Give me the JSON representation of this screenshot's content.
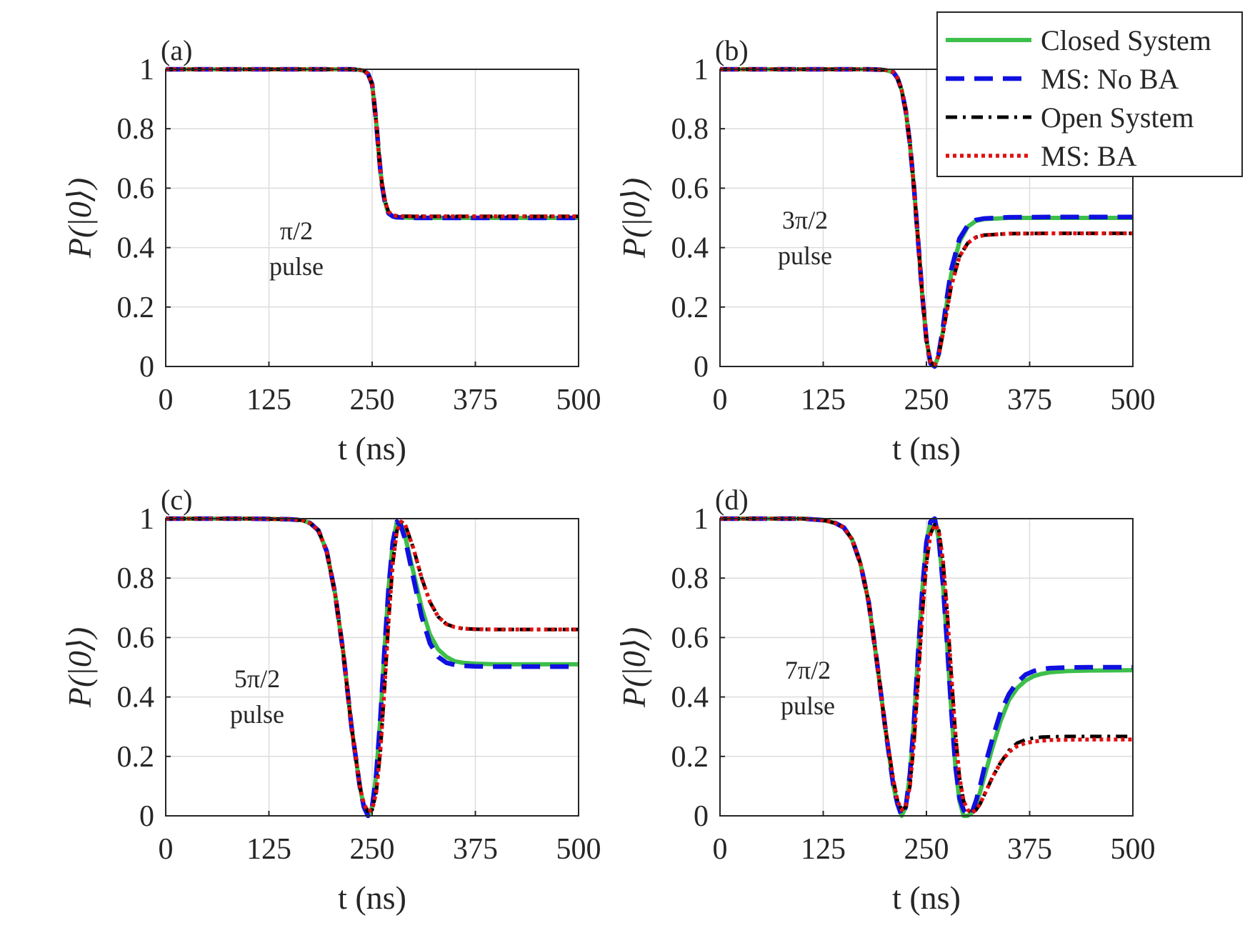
{
  "chart_data": [
    {
      "type": "line",
      "panel_label": "(a)",
      "annotation": [
        "π/2",
        "pulse"
      ],
      "xlabel": "t (ns)",
      "ylabel": "P(|0⟩)",
      "xlim": [
        0,
        500
      ],
      "ylim": [
        0,
        1
      ],
      "xticks": [
        "0",
        "125",
        "250",
        "375",
        "500"
      ],
      "yticks": [
        "0",
        "0.2",
        "0.4",
        "0.6",
        "0.8",
        "1"
      ],
      "x": [
        0,
        100,
        200,
        225,
        235,
        240,
        245,
        250,
        252,
        255,
        258,
        260,
        262,
        265,
        268,
        270,
        275,
        280,
        300,
        350,
        400,
        450,
        500
      ],
      "series": [
        {
          "name": "Closed System",
          "values": [
            1,
            1,
            1,
            1,
            0.998,
            0.995,
            0.985,
            0.95,
            0.9,
            0.82,
            0.72,
            0.66,
            0.61,
            0.56,
            0.53,
            0.515,
            0.505,
            0.502,
            0.5,
            0.5,
            0.5,
            0.5,
            0.5
          ]
        },
        {
          "name": "MS: No BA",
          "values": [
            1,
            1,
            1,
            1,
            0.998,
            0.995,
            0.985,
            0.95,
            0.9,
            0.82,
            0.72,
            0.66,
            0.61,
            0.56,
            0.53,
            0.515,
            0.505,
            0.502,
            0.5,
            0.5,
            0.5,
            0.5,
            0.5
          ]
        },
        {
          "name": "Open System",
          "values": [
            1,
            1,
            1,
            1,
            0.998,
            0.995,
            0.985,
            0.95,
            0.9,
            0.82,
            0.72,
            0.66,
            0.615,
            0.565,
            0.535,
            0.52,
            0.51,
            0.506,
            0.505,
            0.505,
            0.505,
            0.505,
            0.505
          ]
        },
        {
          "name": "MS: BA",
          "values": [
            1,
            1,
            1,
            1,
            0.998,
            0.995,
            0.985,
            0.95,
            0.9,
            0.82,
            0.72,
            0.66,
            0.615,
            0.565,
            0.535,
            0.52,
            0.51,
            0.506,
            0.505,
            0.505,
            0.505,
            0.505,
            0.505
          ]
        }
      ]
    },
    {
      "type": "line",
      "panel_label": "(b)",
      "annotation": [
        "3π/2",
        "pulse"
      ],
      "xlabel": "t (ns)",
      "ylabel": "P(|0⟩)",
      "xlim": [
        0,
        500
      ],
      "ylim": [
        0,
        1
      ],
      "xticks": [
        "0",
        "125",
        "250",
        "375",
        "500"
      ],
      "yticks": [
        "0",
        "0.2",
        "0.4",
        "0.6",
        "0.8",
        "1"
      ],
      "x": [
        0,
        100,
        180,
        200,
        210,
        215,
        220,
        225,
        230,
        235,
        240,
        245,
        250,
        255,
        260,
        265,
        270,
        275,
        280,
        290,
        300,
        310,
        320,
        350,
        400,
        500
      ],
      "series": [
        {
          "name": "Closed System",
          "values": [
            1,
            1,
            1,
            0.998,
            0.99,
            0.97,
            0.93,
            0.86,
            0.75,
            0.6,
            0.42,
            0.24,
            0.09,
            0.01,
            0.0,
            0.04,
            0.12,
            0.22,
            0.31,
            0.42,
            0.47,
            0.49,
            0.496,
            0.5,
            0.5,
            0.5
          ]
        },
        {
          "name": "MS: No BA",
          "values": [
            1,
            1,
            1,
            0.998,
            0.99,
            0.97,
            0.93,
            0.86,
            0.75,
            0.6,
            0.42,
            0.24,
            0.09,
            0.01,
            0.0,
            0.045,
            0.13,
            0.235,
            0.325,
            0.43,
            0.475,
            0.493,
            0.498,
            0.502,
            0.503,
            0.503
          ]
        },
        {
          "name": "Open System",
          "values": [
            1,
            1,
            1,
            0.998,
            0.99,
            0.97,
            0.93,
            0.86,
            0.75,
            0.6,
            0.42,
            0.24,
            0.09,
            0.015,
            0.005,
            0.04,
            0.11,
            0.19,
            0.27,
            0.37,
            0.415,
            0.435,
            0.442,
            0.447,
            0.448,
            0.448
          ]
        },
        {
          "name": "MS: BA",
          "values": [
            1,
            1,
            1,
            0.998,
            0.99,
            0.97,
            0.93,
            0.86,
            0.75,
            0.6,
            0.42,
            0.24,
            0.09,
            0.015,
            0.005,
            0.04,
            0.11,
            0.19,
            0.27,
            0.37,
            0.415,
            0.435,
            0.442,
            0.447,
            0.448,
            0.448
          ]
        }
      ]
    },
    {
      "type": "line",
      "panel_label": "(c)",
      "annotation": [
        "5π/2",
        "pulse"
      ],
      "xlabel": "t (ns)",
      "ylabel": "P(|0⟩)",
      "xlim": [
        0,
        500
      ],
      "ylim": [
        0,
        1
      ],
      "xticks": [
        "0",
        "125",
        "250",
        "375",
        "500"
      ],
      "yticks": [
        "0",
        "0.2",
        "0.4",
        "0.6",
        "0.8",
        "1"
      ],
      "x": [
        0,
        100,
        150,
        165,
        175,
        185,
        195,
        205,
        215,
        225,
        235,
        240,
        245,
        250,
        255,
        260,
        265,
        270,
        275,
        280,
        285,
        290,
        300,
        310,
        320,
        330,
        340,
        350,
        360,
        375,
        400,
        450,
        500
      ],
      "series": [
        {
          "name": "Closed System",
          "values": [
            1,
            1,
            0.998,
            0.995,
            0.985,
            0.96,
            0.89,
            0.75,
            0.55,
            0.3,
            0.1,
            0.03,
            0.0,
            0.03,
            0.14,
            0.33,
            0.56,
            0.77,
            0.92,
            0.99,
            0.98,
            0.94,
            0.82,
            0.7,
            0.61,
            0.56,
            0.535,
            0.52,
            0.515,
            0.512,
            0.51,
            0.51,
            0.51
          ]
        },
        {
          "name": "MS: No BA",
          "values": [
            1,
            1,
            0.998,
            0.995,
            0.985,
            0.96,
            0.89,
            0.75,
            0.55,
            0.3,
            0.1,
            0.03,
            0.0,
            0.03,
            0.14,
            0.33,
            0.56,
            0.77,
            0.92,
            0.99,
            0.975,
            0.93,
            0.8,
            0.67,
            0.58,
            0.535,
            0.515,
            0.508,
            0.505,
            0.503,
            0.502,
            0.502,
            0.502
          ]
        },
        {
          "name": "Open System",
          "values": [
            1,
            1,
            0.998,
            0.995,
            0.985,
            0.96,
            0.89,
            0.75,
            0.55,
            0.3,
            0.1,
            0.04,
            0.015,
            0.02,
            0.08,
            0.22,
            0.43,
            0.66,
            0.85,
            0.96,
            0.99,
            0.98,
            0.9,
            0.8,
            0.72,
            0.67,
            0.645,
            0.635,
            0.63,
            0.628,
            0.627,
            0.627,
            0.627
          ]
        },
        {
          "name": "MS: BA",
          "values": [
            1,
            1,
            0.998,
            0.995,
            0.985,
            0.96,
            0.89,
            0.75,
            0.55,
            0.3,
            0.1,
            0.04,
            0.015,
            0.02,
            0.08,
            0.22,
            0.43,
            0.66,
            0.85,
            0.96,
            0.99,
            0.98,
            0.9,
            0.8,
            0.72,
            0.67,
            0.645,
            0.635,
            0.63,
            0.628,
            0.627,
            0.627,
            0.627
          ]
        }
      ]
    },
    {
      "type": "line",
      "panel_label": "(d)",
      "annotation": [
        "7π/2",
        "pulse"
      ],
      "xlabel": "t (ns)",
      "ylabel": "P(|0⟩)",
      "xlim": [
        0,
        500
      ],
      "ylim": [
        0,
        1
      ],
      "xticks": [
        "0",
        "125",
        "250",
        "375",
        "500"
      ],
      "yticks": [
        "0",
        "0.2",
        "0.4",
        "0.6",
        "0.8",
        "1"
      ],
      "x": [
        0,
        100,
        125,
        140,
        150,
        160,
        170,
        180,
        190,
        200,
        210,
        215,
        220,
        225,
        230,
        235,
        240,
        245,
        250,
        255,
        260,
        265,
        270,
        275,
        280,
        285,
        290,
        295,
        300,
        305,
        310,
        315,
        320,
        330,
        340,
        350,
        360,
        370,
        380,
        390,
        400,
        420,
        450,
        500
      ],
      "series": [
        {
          "name": "Closed System",
          "values": [
            1,
            1,
            0.995,
            0.985,
            0.97,
            0.93,
            0.85,
            0.72,
            0.52,
            0.3,
            0.1,
            0.04,
            0.0,
            0.03,
            0.14,
            0.32,
            0.55,
            0.76,
            0.92,
            0.99,
            1.0,
            0.93,
            0.78,
            0.58,
            0.36,
            0.17,
            0.05,
            0.0,
            0.0,
            0.01,
            0.04,
            0.08,
            0.13,
            0.23,
            0.32,
            0.39,
            0.43,
            0.455,
            0.47,
            0.478,
            0.483,
            0.487,
            0.489,
            0.49
          ]
        },
        {
          "name": "MS: No BA",
          "values": [
            1,
            1,
            0.995,
            0.985,
            0.97,
            0.93,
            0.85,
            0.72,
            0.52,
            0.3,
            0.1,
            0.04,
            0.0,
            0.03,
            0.14,
            0.32,
            0.55,
            0.76,
            0.92,
            0.99,
            1.0,
            0.93,
            0.78,
            0.58,
            0.36,
            0.17,
            0.06,
            0.02,
            0.0,
            0.01,
            0.05,
            0.1,
            0.16,
            0.26,
            0.35,
            0.41,
            0.45,
            0.475,
            0.487,
            0.494,
            0.497,
            0.499,
            0.5,
            0.5
          ]
        },
        {
          "name": "Open System",
          "values": [
            1,
            1,
            0.995,
            0.985,
            0.97,
            0.93,
            0.85,
            0.72,
            0.52,
            0.3,
            0.12,
            0.05,
            0.02,
            0.03,
            0.1,
            0.25,
            0.46,
            0.68,
            0.85,
            0.95,
            0.98,
            0.96,
            0.86,
            0.69,
            0.48,
            0.28,
            0.13,
            0.05,
            0.02,
            0.01,
            0.02,
            0.04,
            0.07,
            0.13,
            0.18,
            0.22,
            0.245,
            0.256,
            0.262,
            0.265,
            0.266,
            0.267,
            0.267,
            0.267
          ]
        },
        {
          "name": "MS: BA",
          "values": [
            1,
            1,
            0.995,
            0.985,
            0.97,
            0.93,
            0.85,
            0.72,
            0.52,
            0.3,
            0.12,
            0.05,
            0.02,
            0.03,
            0.1,
            0.25,
            0.46,
            0.68,
            0.85,
            0.95,
            0.98,
            0.96,
            0.86,
            0.69,
            0.48,
            0.28,
            0.13,
            0.05,
            0.02,
            0.01,
            0.02,
            0.04,
            0.07,
            0.13,
            0.18,
            0.215,
            0.235,
            0.245,
            0.25,
            0.253,
            0.255,
            0.256,
            0.257,
            0.257
          ]
        }
      ]
    }
  ],
  "legend": [
    {
      "name": "Closed System",
      "color": "#3dbf4a",
      "style": "solid"
    },
    {
      "name": "MS: No BA",
      "color": "#1010e0",
      "style": "dashed"
    },
    {
      "name": "Open System",
      "color": "#000000",
      "style": "dashdot"
    },
    {
      "name": "MS: BA",
      "color": "#e01010",
      "style": "dotted"
    }
  ]
}
